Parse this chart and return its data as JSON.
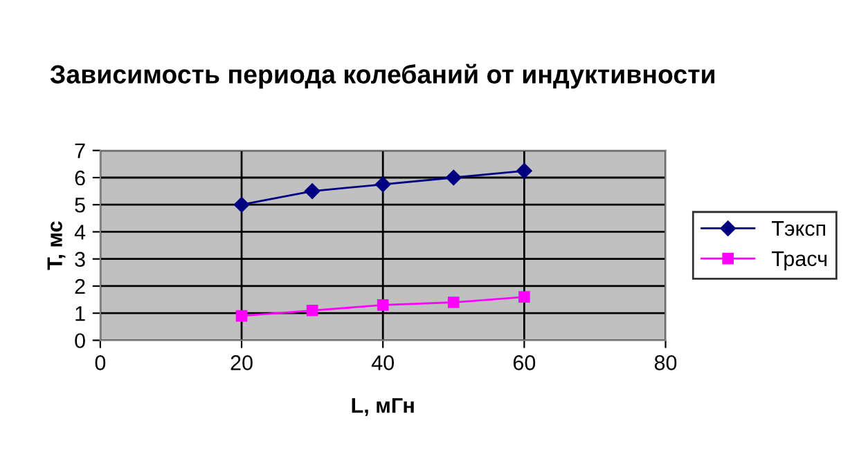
{
  "chart_data": {
    "type": "line",
    "title": "Зависимость периода колебаний от индуктивности",
    "xlabel": "L, мГн",
    "ylabel": "T, мс",
    "x": [
      20,
      30,
      40,
      50,
      60
    ],
    "series": [
      {
        "name": "Тэксп",
        "color": "#000080",
        "marker": "diamond",
        "values": [
          5,
          5.5,
          5.75,
          6,
          6.25
        ]
      },
      {
        "name": "Трасч",
        "color": "#ff00ff",
        "marker": "square",
        "values": [
          0.9,
          1.1,
          1.3,
          1.4,
          1.6
        ]
      }
    ],
    "xlim": [
      0,
      80
    ],
    "xticks": [
      0,
      20,
      40,
      60,
      80
    ],
    "ylim": [
      0,
      7
    ],
    "yticks": [
      0,
      1,
      2,
      3,
      4,
      5,
      6,
      7
    ],
    "grid": true,
    "legend": "right",
    "line_style": "solid"
  }
}
